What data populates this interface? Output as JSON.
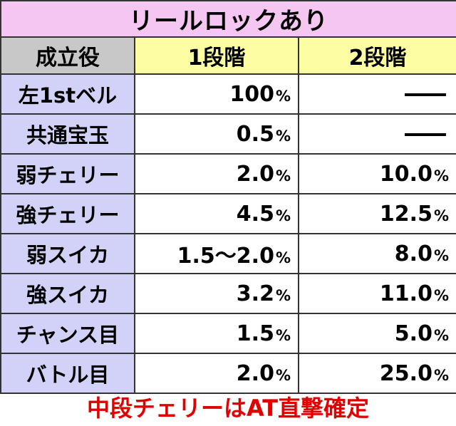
{
  "title": "リールロックあり",
  "headers": {
    "role": "成立役",
    "stage1": "1段階",
    "stage2": "2段階"
  },
  "rows": [
    {
      "role": "左1stベル",
      "stage1": "100",
      "stage2": "—"
    },
    {
      "role": "共通宝玉",
      "stage1": "0.5",
      "stage2": "—"
    },
    {
      "role": "弱チェリー",
      "stage1": "2.0",
      "stage2": "10.0"
    },
    {
      "role": "強チェリー",
      "stage1": "4.5",
      "stage2": "12.5"
    },
    {
      "role": "弱スイカ",
      "stage1": "1.5〜2.0",
      "stage2": "8.0"
    },
    {
      "role": "強スイカ",
      "stage1": "3.2",
      "stage2": "11.0"
    },
    {
      "role": "チャンス目",
      "stage1": "1.5",
      "stage2": "5.0"
    },
    {
      "role": "バトル目",
      "stage1": "2.0",
      "stage2": "25.0"
    }
  ],
  "percent_sign": "%",
  "note": "中段チェリーはAT直撃確定",
  "colors": {
    "title_bg": "#f5c6f2",
    "role_header_bg": "#c8c8c8",
    "stage_header_bg": "#fdfda3",
    "role_cell_bg": "#d2d2f8",
    "note_text": "#e00000"
  }
}
